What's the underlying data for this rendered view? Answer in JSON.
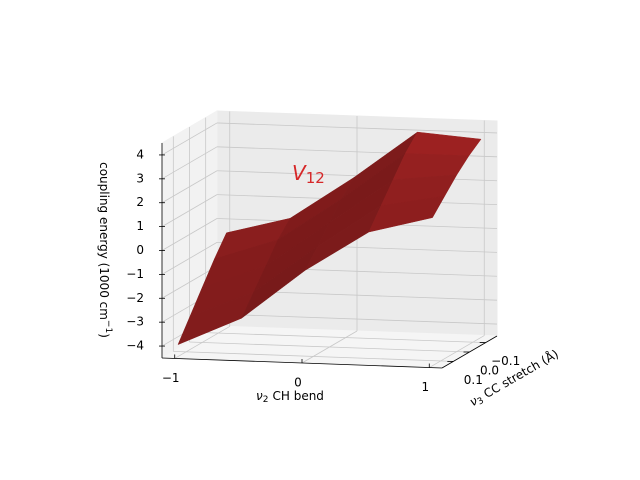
{
  "chart_data": {
    "type": "surface",
    "annotation": [
      "V",
      "12"
    ],
    "annotation_color": "#d62728",
    "xlabel": [
      "ν",
      "2",
      "CH bend"
    ],
    "ylabel": [
      "ν",
      "3",
      "CC stretch (Å)"
    ],
    "zlabel": [
      "coupling energy (1000 cm",
      "−1",
      ")"
    ],
    "x": [
      -1,
      -0.5,
      0,
      0.5,
      1
    ],
    "y": [
      -0.15,
      -0.075,
      0,
      0.075,
      0.15
    ],
    "z": [
      [
        -0.5,
        0.2,
        2.0,
        4.0,
        3.8
      ],
      [
        -1.3,
        -0.4,
        1.4,
        3.4,
        3.4
      ],
      [
        -2.2,
        -1.2,
        0.7,
        2.6,
        2.9
      ],
      [
        -3.1,
        -2.0,
        0.0,
        1.8,
        2.3
      ],
      [
        -4.0,
        -2.8,
        -0.7,
        1.0,
        1.7
      ]
    ],
    "color": "#e03030",
    "xlim": [
      -1.1,
      1.1
    ],
    "ylim": [
      -0.17,
      0.17
    ],
    "zlim": [
      -4.5,
      4.5
    ],
    "xticks": [
      {
        "value": -1,
        "label": "−1"
      },
      0,
      1
    ],
    "yticks": [
      {
        "value": -0.1,
        "label": "−0.1"
      },
      {
        "value": 0.0,
        "label": "0.0"
      },
      0.1
    ],
    "zticks": [
      {
        "value": -4,
        "label": "−4"
      },
      {
        "value": -3,
        "label": "−3"
      },
      {
        "value": -2,
        "label": "−2"
      },
      {
        "value": -1,
        "label": "−1"
      },
      0,
      1,
      2,
      3,
      4
    ],
    "grid": true
  }
}
